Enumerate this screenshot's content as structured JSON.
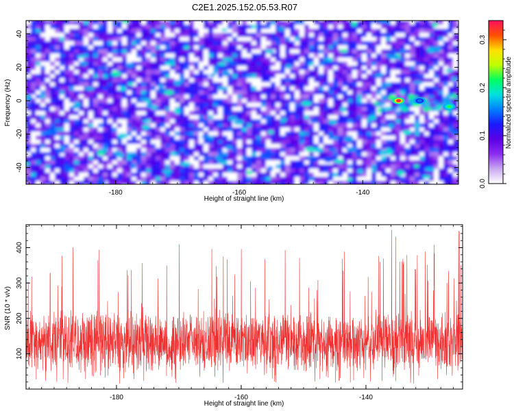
{
  "title": "C2E1.2025.152.05.53.R07",
  "colors": {
    "snr_line": "#f03030",
    "frame": "#000000"
  },
  "chart_data": [
    {
      "type": "heatmap",
      "xlabel": "Height of straight line (km)",
      "ylabel": "Frequency (Hz)",
      "xlim": [
        -194.5,
        -124.5
      ],
      "ylim": [
        -50,
        48
      ],
      "x_ticks": [
        -180,
        -160,
        -140
      ],
      "x_tick_labels": [
        "-180",
        "-160",
        "-140"
      ],
      "y_ticks": [
        -40,
        -20,
        0,
        20,
        40
      ],
      "y_tick_labels": [
        "-40",
        "-20",
        "0",
        "20",
        "40"
      ],
      "colorbar": {
        "label": "Normalized spectral amplitude",
        "range": [
          0,
          0.34
        ],
        "ticks": [
          0.0,
          0.1,
          0.2,
          0.3
        ],
        "tick_labels": [
          "0.0",
          "0.1",
          "0.2",
          "0.3"
        ],
        "colormap": [
          "#ffffff",
          "#c9a8f0",
          "#8b2cf0",
          "#5a00e6",
          "#1a1aff",
          "#0080ff",
          "#00e0e0",
          "#00ff60",
          "#c0ff00",
          "#ffe000",
          "#ff5000",
          "#ff1060"
        ]
      },
      "hot_spots": [
        {
          "x": -134.2,
          "y": 0,
          "value": 0.33
        },
        {
          "x": -126.0,
          "y": -3.5,
          "value": 0.22
        },
        {
          "x": -130.8,
          "y": 0,
          "value": 0.15
        }
      ],
      "grid": false
    },
    {
      "type": "line",
      "xlabel": "Height of straight line (km)",
      "ylabel": "SNR (10 * v/v)",
      "xlim": [
        -194.5,
        -124.5
      ],
      "ylim": [
        0,
        465
      ],
      "x_ticks": [
        -180,
        -160,
        -140
      ],
      "x_tick_labels": [
        "-180",
        "-160",
        "-140"
      ],
      "y_ticks": [
        100,
        200,
        300,
        400
      ],
      "y_tick_labels": [
        "100",
        "200",
        "300",
        "400"
      ],
      "series": [
        {
          "typical_range": [
            40,
            230
          ],
          "peak_max": 465
        }
      ],
      "grid": false
    }
  ]
}
